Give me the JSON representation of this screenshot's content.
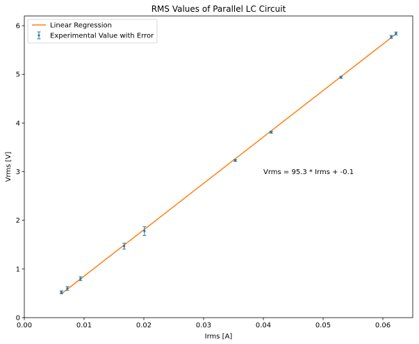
{
  "chart_data": {
    "type": "scatter",
    "title": "RMS Values of Parallel LC Circuit",
    "xlabel": "Irms [A]",
    "ylabel": "Vrms [V]",
    "xlim": [
      0.0,
      0.065
    ],
    "ylim": [
      0,
      6.2
    ],
    "x_ticks": [
      0.0,
      0.01,
      0.02,
      0.03,
      0.04,
      0.05,
      0.06
    ],
    "x_tick_labels": [
      "0.00",
      "0.01",
      "0.02",
      "0.03",
      "0.04",
      "0.05",
      "0.06"
    ],
    "y_ticks": [
      0,
      1,
      2,
      3,
      4,
      5,
      6
    ],
    "y_tick_labels": [
      "0",
      "1",
      "2",
      "3",
      "4",
      "5",
      "6"
    ],
    "grid": false,
    "legend_position": "top-left",
    "series": [
      {
        "name": "Linear Regression",
        "kind": "line",
        "color": "#ff7f0e",
        "x": [
          0.0062,
          0.0622
        ],
        "y": [
          0.49,
          5.83
        ]
      },
      {
        "name": "Experimental Value with Error",
        "kind": "errorbar",
        "color": "#1f77b4",
        "x": [
          0.0062,
          0.0072,
          0.0094,
          0.0167,
          0.0201,
          0.0353,
          0.0413,
          0.053,
          0.0614,
          0.0622
        ],
        "y": [
          0.52,
          0.6,
          0.8,
          1.47,
          1.78,
          3.23,
          3.81,
          4.94,
          5.77,
          5.84
        ],
        "yerr": [
          0.03,
          0.04,
          0.04,
          0.06,
          0.09,
          0.02,
          0.02,
          0.02,
          0.03,
          0.03
        ]
      }
    ],
    "annotation": {
      "text": "Vrms = 95.3 * Irms + -0.1",
      "x": 0.04,
      "y": 3.0
    }
  }
}
